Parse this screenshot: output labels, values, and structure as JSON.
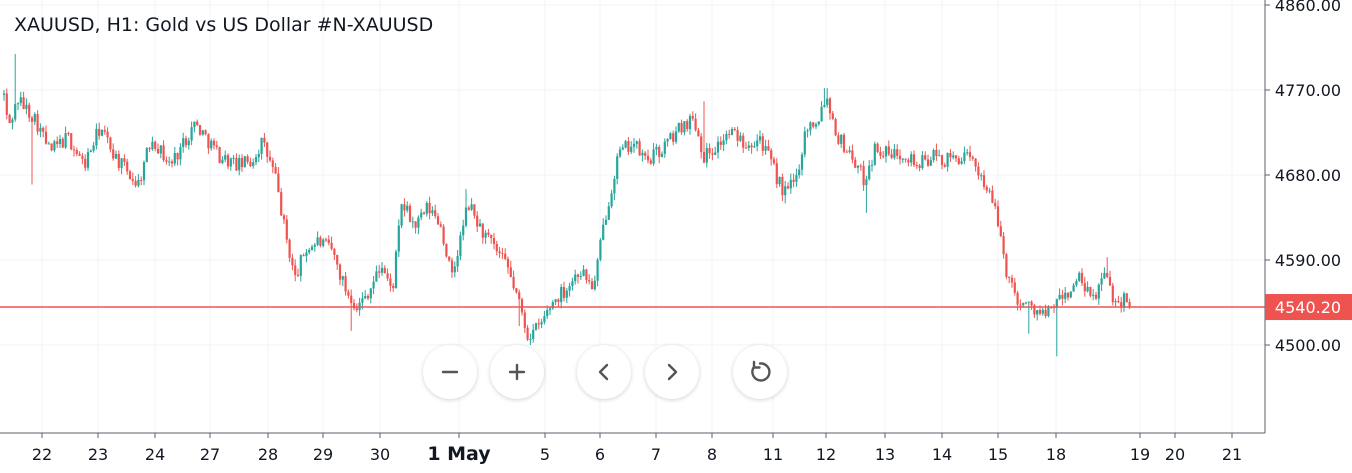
{
  "chart_data": {
    "type": "candlestick",
    "title": "XAUUSD, H1: Gold vs US Dollar #N-XAUUSD",
    "ylim": [
      4420,
      4860
    ],
    "y_ticks": [
      4500,
      4590,
      4680,
      4770,
      4860
    ],
    "y_tick_labels": [
      "4500.00",
      "4590.00",
      "4680.00",
      "4770.00",
      "4860.00"
    ],
    "x_labels": [
      "22",
      "23",
      "24",
      "27",
      "28",
      "29",
      "30",
      "1 May",
      "5",
      "6",
      "7",
      "8",
      "11",
      "12",
      "13",
      "14",
      "15",
      "18",
      "19",
      "20",
      "21"
    ],
    "current_price": 4540.2,
    "current_price_label": "4540.20",
    "up_color": "#26a69a",
    "down_color": "#ef5350",
    "price_line_color": "#ef5350",
    "grid": true,
    "anchors": [
      [
        0,
        4800
      ],
      [
        8,
        4730
      ],
      [
        18,
        4760
      ],
      [
        35,
        4740
      ],
      [
        50,
        4705
      ],
      [
        68,
        4720
      ],
      [
        84,
        4690
      ],
      [
        100,
        4730
      ],
      [
        118,
        4695
      ],
      [
        138,
        4670
      ],
      [
        152,
        4720
      ],
      [
        170,
        4690
      ],
      [
        195,
        4735
      ],
      [
        220,
        4700
      ],
      [
        238,
        4690
      ],
      [
        252,
        4695
      ],
      [
        262,
        4715
      ],
      [
        275,
        4680
      ],
      [
        285,
        4620
      ],
      [
        295,
        4570
      ],
      [
        305,
        4600
      ],
      [
        318,
        4610
      ],
      [
        332,
        4600
      ],
      [
        345,
        4560
      ],
      [
        358,
        4540
      ],
      [
        370,
        4560
      ],
      [
        382,
        4585
      ],
      [
        392,
        4555
      ],
      [
        402,
        4650
      ],
      [
        415,
        4625
      ],
      [
        428,
        4645
      ],
      [
        440,
        4630
      ],
      [
        452,
        4570
      ],
      [
        468,
        4650
      ],
      [
        482,
        4620
      ],
      [
        496,
        4600
      ],
      [
        508,
        4580
      ],
      [
        516,
        4555
      ],
      [
        528,
        4510
      ],
      [
        540,
        4520
      ],
      [
        552,
        4545
      ],
      [
        566,
        4560
      ],
      [
        580,
        4580
      ],
      [
        594,
        4560
      ],
      [
        604,
        4630
      ],
      [
        618,
        4700
      ],
      [
        632,
        4715
      ],
      [
        646,
        4695
      ],
      [
        660,
        4705
      ],
      [
        672,
        4720
      ],
      [
        684,
        4735
      ],
      [
        694,
        4740
      ],
      [
        704,
        4700
      ],
      [
        716,
        4710
      ],
      [
        730,
        4725
      ],
      [
        746,
        4715
      ],
      [
        760,
        4720
      ],
      [
        772,
        4690
      ],
      [
        784,
        4660
      ],
      [
        796,
        4675
      ],
      [
        806,
        4730
      ],
      [
        818,
        4740
      ],
      [
        826,
        4765
      ],
      [
        838,
        4720
      ],
      [
        852,
        4700
      ],
      [
        864,
        4675
      ],
      [
        876,
        4710
      ],
      [
        890,
        4700
      ],
      [
        904,
        4705
      ],
      [
        918,
        4690
      ],
      [
        932,
        4700
      ],
      [
        946,
        4695
      ],
      [
        962,
        4700
      ],
      [
        976,
        4690
      ],
      [
        988,
        4665
      ],
      [
        998,
        4630
      ],
      [
        1008,
        4570
      ],
      [
        1020,
        4545
      ],
      [
        1032,
        4540
      ],
      [
        1046,
        4530
      ],
      [
        1056,
        4545
      ],
      [
        1068,
        4555
      ],
      [
        1080,
        4570
      ],
      [
        1092,
        4545
      ],
      [
        1104,
        4575
      ],
      [
        1116,
        4545
      ],
      [
        1126,
        4550
      ],
      [
        1132,
        4540.2
      ]
    ],
    "spikes": [
      [
        28,
        4670
      ],
      [
        112,
        4700
      ],
      [
        348,
        4515
      ],
      [
        462,
        4665
      ],
      [
        514,
        4520
      ],
      [
        527,
        4500
      ],
      [
        700,
        4758
      ],
      [
        780,
        4650
      ],
      [
        822,
        4772
      ],
      [
        862,
        4640
      ],
      [
        1026,
        4512
      ],
      [
        1052,
        4488
      ],
      [
        1104,
        4593
      ],
      [
        820,
        4772
      ],
      [
        12,
        4808
      ]
    ]
  },
  "controls": {
    "zoom_out_icon": "minus-icon",
    "zoom_in_icon": "plus-icon",
    "scroll_left_icon": "chevron-left-icon",
    "scroll_right_icon": "chevron-right-icon",
    "reset_icon": "reset-icon"
  }
}
